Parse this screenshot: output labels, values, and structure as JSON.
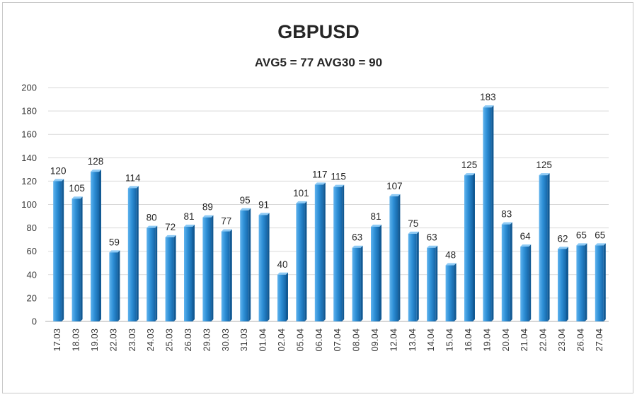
{
  "chart_data": {
    "type": "bar",
    "title": "GBPUSD",
    "subtitle": "AVG5 = 77 AVG30 = 90",
    "xlabel": "",
    "ylabel": "",
    "ylim": [
      0,
      200
    ],
    "yticks": [
      0,
      20,
      40,
      60,
      80,
      100,
      120,
      140,
      160,
      180,
      200
    ],
    "grid": true,
    "legend": "none",
    "bar_color": "#2e8fd6",
    "categories": [
      "17.03",
      "18.03",
      "19.03",
      "22.03",
      "23.03",
      "24.03",
      "25.03",
      "26.03",
      "29.03",
      "30.03",
      "31.03",
      "01.04",
      "02.04",
      "05.04",
      "06.04",
      "07.04",
      "08.04",
      "09.04",
      "12.04",
      "13.04",
      "14.04",
      "15.04",
      "16.04",
      "19.04",
      "20.04",
      "21.04",
      "22.04",
      "23.04",
      "26.04",
      "27.04"
    ],
    "values": [
      120,
      105,
      128,
      59,
      114,
      80,
      72,
      81,
      89,
      77,
      95,
      91,
      40,
      101,
      117,
      115,
      63,
      81,
      107,
      75,
      63,
      48,
      125,
      183,
      83,
      64,
      125,
      62,
      65,
      65
    ]
  }
}
